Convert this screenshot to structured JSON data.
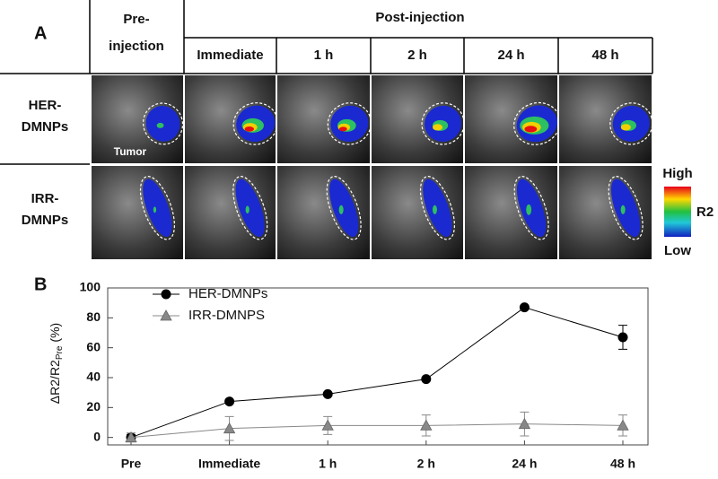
{
  "panel_a": {
    "label": "A",
    "pre_header": [
      "Pre-",
      "injection"
    ],
    "post_header": "Post-injection",
    "columns": [
      "Immediate",
      "1 h",
      "2 h",
      "24 h",
      "48 h"
    ],
    "rows": [
      [
        "HER-",
        "DMNPs"
      ],
      [
        "IRR-",
        "DMNPs"
      ]
    ],
    "annotation": "Tumor",
    "colorbar": {
      "high": "High",
      "low": "Low",
      "label": "R2"
    }
  },
  "chart_data": {
    "type": "line",
    "panel_label": "B",
    "y_label": "ΔR2/R2",
    "y_label_sub": "Pre",
    "y_label_unit": "(%)",
    "categories": [
      "Pre",
      "Immediate",
      "1 h",
      "2 h",
      "24 h",
      "48 h"
    ],
    "series": [
      {
        "name": "HER-DMNPs",
        "color": "#000000",
        "marker": "circle",
        "values": [
          0,
          24,
          29,
          39,
          87,
          67
        ],
        "errors": [
          2,
          1,
          1,
          1,
          1,
          8
        ]
      },
      {
        "name": "IRR-DMNPS",
        "color": "#888888",
        "marker": "triangle",
        "values": [
          0,
          6,
          8,
          8,
          9,
          8
        ],
        "errors": [
          3,
          8,
          6,
          7,
          8,
          7
        ]
      }
    ],
    "ylim": [
      -5,
      100
    ],
    "yticks": [
      0,
      20,
      40,
      60,
      80,
      100
    ],
    "legend": "upper left"
  }
}
